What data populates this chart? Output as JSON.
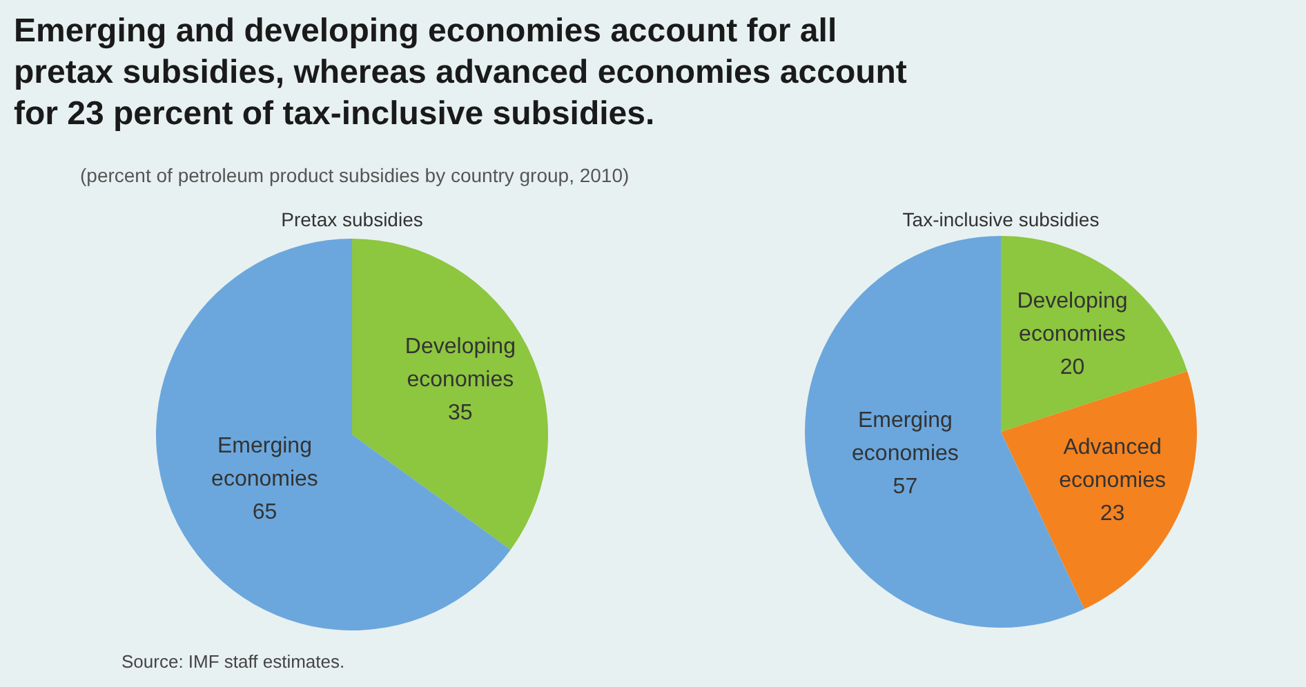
{
  "chart_data": [
    {
      "type": "other",
      "title": "Emerging and developing economies account for all pretax subsidies, whereas advanced economies account for 23 percent of tax-inclusive subsidies.",
      "subtitle": "(percent of petroleum product subsidies by country group, 2010)",
      "annotations": [
        "Source: IMF staff estimates."
      ]
    },
    {
      "type": "pie",
      "title": "Pretax subsidies",
      "categories": [
        "Developing economies",
        "Emerging economies"
      ],
      "values": [
        35,
        65
      ],
      "colors": [
        "#8dc63f",
        "#6ba7dd"
      ],
      "data_labels": true
    },
    {
      "type": "pie",
      "title": "Tax-inclusive subsidies",
      "categories": [
        "Developing economies",
        "Advanced economies",
        "Emerging economies"
      ],
      "values": [
        20,
        23,
        57
      ],
      "colors": [
        "#8dc63f",
        "#f4821f",
        "#6ba7dd"
      ],
      "data_labels": true
    }
  ]
}
